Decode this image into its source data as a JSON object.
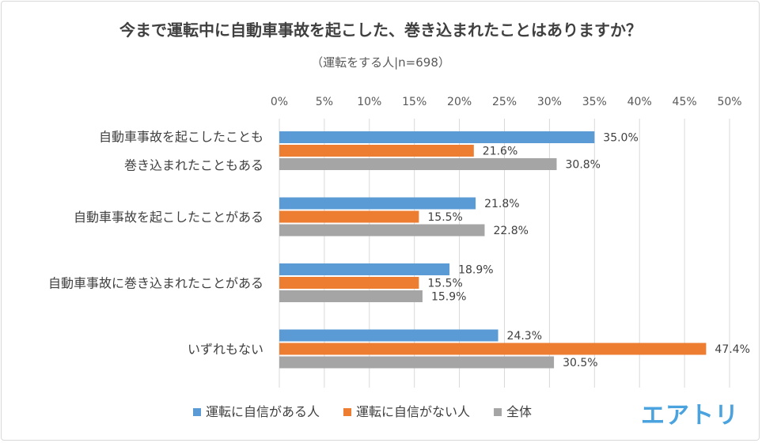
{
  "chart_data": {
    "type": "bar",
    "orientation": "horizontal",
    "title": "今まで運転中に自動車事故を起こした、巻き込まれたことはありますか？",
    "subtitle": "（運転をする人|n=698）",
    "categories": [
      [
        "自動車事故を起こしたことも",
        "巻き込まれたこともある"
      ],
      [
        "自動車事故を起こしたことがある"
      ],
      [
        "自動車事故に巻き込まれたことがある"
      ],
      [
        "いずれもない"
      ]
    ],
    "series": [
      {
        "name": "運転に自信がある人",
        "color": "#5b9bd5",
        "values": [
          35.0,
          21.8,
          18.9,
          24.3
        ]
      },
      {
        "name": "運転に自信がない人",
        "color": "#ed7d31",
        "values": [
          21.6,
          15.5,
          15.5,
          47.4
        ]
      },
      {
        "name": "全体",
        "color": "#a5a5a5",
        "values": [
          30.8,
          22.8,
          15.9,
          30.5
        ]
      }
    ],
    "x_ticks": [
      "0%",
      "5%",
      "10%",
      "15%",
      "20%",
      "25%",
      "30%",
      "35%",
      "40%",
      "45%",
      "50%"
    ],
    "xlim": [
      0,
      50
    ],
    "value_suffix": "%",
    "grid": true,
    "legend_position": "bottom"
  },
  "logo_text": "エアトリ"
}
